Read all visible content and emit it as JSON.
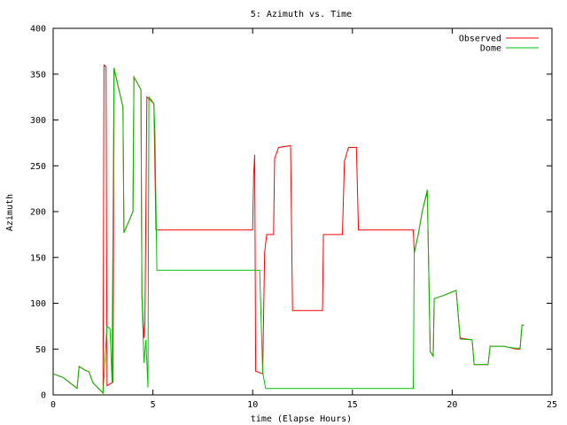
{
  "chart_data": {
    "type": "line",
    "title": "5: Azimuth vs. Time",
    "xlabel": "time (Elapse Hours)",
    "ylabel": "Azimuth",
    "xlim": [
      0,
      25
    ],
    "ylim": [
      0,
      400
    ],
    "xticks": [
      0,
      5,
      10,
      15,
      20,
      25
    ],
    "yticks": [
      0,
      50,
      100,
      150,
      200,
      250,
      300,
      350,
      400
    ],
    "grid": false,
    "legend_position": "top-right",
    "series": [
      {
        "name": "Observed",
        "color": "#ff0000",
        "points": [
          [
            0,
            23
          ],
          [
            0.5,
            19
          ],
          [
            1.2,
            7
          ],
          [
            1.3,
            31
          ],
          [
            1.6,
            27
          ],
          [
            1.8,
            25
          ],
          [
            2.0,
            13
          ],
          [
            2.5,
            2
          ],
          [
            2.55,
            360
          ],
          [
            2.65,
            358
          ],
          [
            2.7,
            10
          ],
          [
            3.0,
            14
          ],
          [
            3.05,
            356
          ],
          [
            3.5,
            314
          ],
          [
            3.55,
            177
          ],
          [
            4.0,
            200
          ],
          [
            4.05,
            347
          ],
          [
            4.4,
            333
          ],
          [
            4.45,
            108
          ],
          [
            4.55,
            62
          ],
          [
            4.6,
            80
          ],
          [
            4.7,
            325
          ],
          [
            5.05,
            318
          ],
          [
            5.15,
            180
          ],
          [
            10.0,
            180
          ],
          [
            10.05,
            240
          ],
          [
            10.1,
            262
          ],
          [
            10.15,
            26
          ],
          [
            10.5,
            23
          ],
          [
            10.6,
            155
          ],
          [
            10.7,
            175
          ],
          [
            11.05,
            175
          ],
          [
            11.1,
            258
          ],
          [
            11.3,
            270
          ],
          [
            11.9,
            272
          ],
          [
            12.0,
            92
          ],
          [
            13.5,
            92
          ],
          [
            13.55,
            175
          ],
          [
            14.5,
            175
          ],
          [
            14.6,
            255
          ],
          [
            14.8,
            270
          ],
          [
            15.2,
            270
          ],
          [
            15.3,
            180
          ],
          [
            18.05,
            180
          ],
          [
            18.1,
            155
          ],
          [
            18.3,
            175
          ],
          [
            18.5,
            200
          ],
          [
            18.75,
            222
          ],
          [
            18.9,
            47
          ],
          [
            19.05,
            43
          ],
          [
            19.1,
            105
          ],
          [
            19.5,
            108
          ],
          [
            20.2,
            114
          ],
          [
            20.4,
            62
          ],
          [
            21.0,
            60
          ],
          [
            21.1,
            33
          ],
          [
            21.8,
            33
          ],
          [
            21.9,
            53
          ],
          [
            22.6,
            53
          ],
          [
            22.8,
            52
          ],
          [
            23.2,
            50
          ],
          [
            23.4,
            50
          ],
          [
            23.5,
            76
          ],
          [
            23.6,
            76
          ]
        ]
      },
      {
        "name": "Dome",
        "color": "#00c000",
        "points": [
          [
            0,
            23
          ],
          [
            0.5,
            19
          ],
          [
            1.2,
            7
          ],
          [
            1.3,
            31
          ],
          [
            1.6,
            27
          ],
          [
            1.8,
            25
          ],
          [
            2.0,
            13
          ],
          [
            2.5,
            2
          ],
          [
            2.7,
            75
          ],
          [
            2.85,
            72
          ],
          [
            2.95,
            14
          ],
          [
            3.05,
            357
          ],
          [
            3.5,
            314
          ],
          [
            3.55,
            177
          ],
          [
            4.0,
            200
          ],
          [
            4.05,
            347
          ],
          [
            4.4,
            333
          ],
          [
            4.45,
            108
          ],
          [
            4.55,
            35
          ],
          [
            4.65,
            60
          ],
          [
            4.75,
            8
          ],
          [
            4.8,
            325
          ],
          [
            5.05,
            318
          ],
          [
            5.1,
            285
          ],
          [
            5.2,
            136
          ],
          [
            10.35,
            136
          ],
          [
            10.5,
            25
          ],
          [
            10.65,
            7
          ],
          [
            18.05,
            7
          ],
          [
            18.1,
            155
          ],
          [
            18.3,
            175
          ],
          [
            18.5,
            200
          ],
          [
            18.75,
            224
          ],
          [
            18.9,
            47
          ],
          [
            19.05,
            42
          ],
          [
            19.1,
            105
          ],
          [
            19.5,
            108
          ],
          [
            20.2,
            114
          ],
          [
            20.4,
            61
          ],
          [
            21.0,
            60
          ],
          [
            21.1,
            33
          ],
          [
            21.8,
            33
          ],
          [
            21.9,
            53
          ],
          [
            22.6,
            53
          ],
          [
            22.8,
            52
          ],
          [
            23.2,
            51
          ],
          [
            23.4,
            51
          ],
          [
            23.5,
            76
          ],
          [
            23.6,
            76
          ]
        ]
      }
    ]
  }
}
